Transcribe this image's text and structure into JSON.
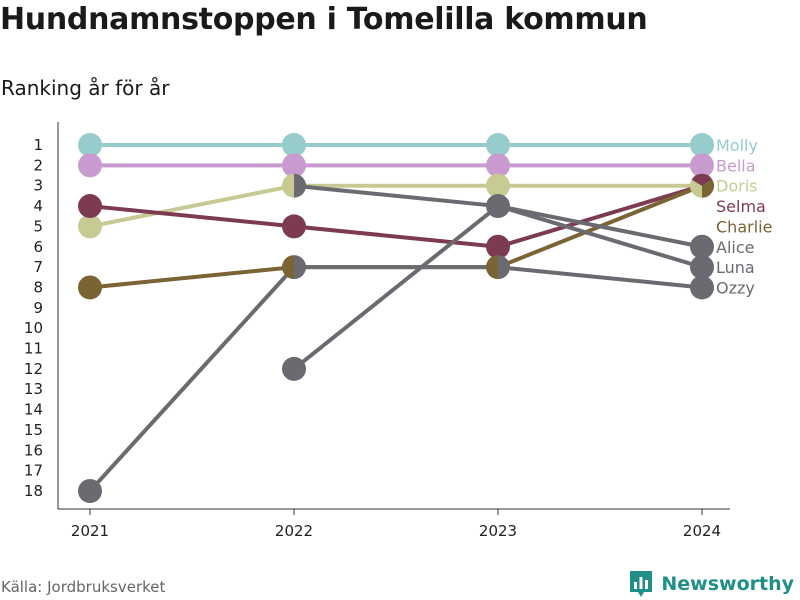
{
  "header": {
    "title": "Hundnamnstoppen i Tomelilla kommun",
    "subtitle": "Ranking år för år"
  },
  "footer": {
    "source": "Källa: Jordbruksverket",
    "brand": "Newsworthy",
    "brand_icon": "bar-chart-logo-icon",
    "brand_color": "#1f8f87"
  },
  "chart_data": {
    "type": "line",
    "x": [
      2021,
      2022,
      2023,
      2024
    ],
    "x_tick_labels": [
      "2021",
      "2022",
      "2023",
      "2024"
    ],
    "y_tick_labels": [
      "1",
      "2",
      "3",
      "4",
      "5",
      "6",
      "7",
      "8",
      "9",
      "10",
      "11",
      "12",
      "13",
      "14",
      "15",
      "16",
      "17",
      "18"
    ],
    "ylim": [
      1,
      18
    ],
    "y_reversed": true,
    "grid": false,
    "legend": "direct labels at right end of lines",
    "series": [
      {
        "name": "Molly",
        "color": "#96cccc",
        "values": [
          1,
          1,
          1,
          1
        ]
      },
      {
        "name": "Bella",
        "color": "#c99ad0",
        "values": [
          2,
          2,
          2,
          2
        ]
      },
      {
        "name": "Doris",
        "color": "#c8ca94",
        "values": [
          5,
          3,
          3,
          3
        ]
      },
      {
        "name": "Selma",
        "color": "#7d3b52",
        "values": [
          4,
          5,
          6,
          3
        ]
      },
      {
        "name": "Charlie",
        "color": "#7a6434",
        "values": [
          8,
          7,
          7,
          3
        ]
      },
      {
        "name": "Alice",
        "color": "#6b6a70",
        "values": [
          null,
          3,
          4,
          6
        ]
      },
      {
        "name": "Luna",
        "color": "#6b6a70",
        "values": [
          null,
          12,
          4,
          7
        ]
      },
      {
        "name": "Ozzy",
        "color": "#6b6a70",
        "values": [
          18,
          7,
          7,
          8
        ]
      }
    ]
  }
}
